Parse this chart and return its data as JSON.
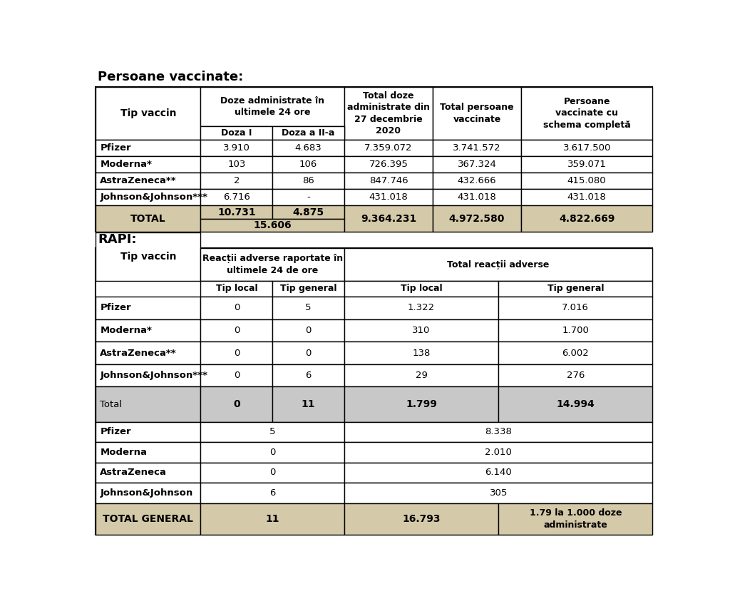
{
  "title1": "Persoane vaccinate:",
  "title2": "RAPI:",
  "tan_color": "#d4c9a8",
  "light_gray": "#c8c8c8",
  "white": "#ffffff",
  "table1": {
    "rows": [
      [
        "Pfizer",
        "3.910",
        "4.683",
        "7.359.072",
        "3.741.572",
        "3.617.500"
      ],
      [
        "Moderna*",
        "103",
        "106",
        "726.395",
        "367.324",
        "359.071"
      ],
      [
        "AstraZeneca**",
        "2",
        "86",
        "847.746",
        "432.666",
        "415.080"
      ],
      [
        "Johnson&Johnson***",
        "6.716",
        "-",
        "431.018",
        "431.018",
        "431.018"
      ]
    ],
    "total_row": {
      "label": "TOTAL",
      "d1": "10.731",
      "d2": "4.875",
      "d_sub": "15.606",
      "total_doze": "9.364.231",
      "total_pers": "4.972.580",
      "schema": "4.822.669"
    }
  },
  "table2": {
    "rows": [
      [
        "Pfizer",
        "0",
        "5",
        "1.322",
        "7.016"
      ],
      [
        "Moderna*",
        "0",
        "0",
        "310",
        "1.700"
      ],
      [
        "AstraZeneca**",
        "0",
        "0",
        "138",
        "6.002"
      ],
      [
        "Johnson&Johnson***",
        "0",
        "6",
        "29",
        "276"
      ]
    ],
    "total_row": {
      "label": "Total",
      "tl": "0",
      "tg": "11",
      "ttl": "1.799",
      "ttg": "14.994"
    },
    "merged_rows": [
      [
        "Pfizer",
        "5",
        "8.338"
      ],
      [
        "Moderna",
        "0",
        "2.010"
      ],
      [
        "AstraZeneca",
        "0",
        "6.140"
      ],
      [
        "Johnson&Johnson",
        "6",
        "305"
      ]
    ],
    "grand_total": {
      "label": "TOTAL GENERAL",
      "val1": "11",
      "val2": "16.793",
      "val3": "1.79 la 1.000 doze\nadministrate"
    }
  }
}
